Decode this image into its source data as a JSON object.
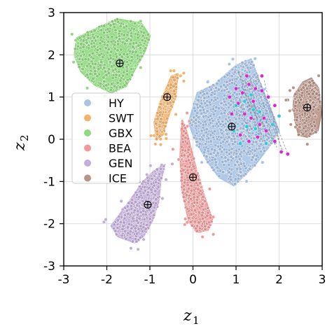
{
  "chart_data": {
    "type": "scatter",
    "xlabel": "z",
    "xlabel_sub": "1",
    "ylabel": "z",
    "ylabel_sub": "2",
    "xlim": [
      -3,
      3
    ],
    "ylim": [
      -3,
      3
    ],
    "xticks": [
      -3,
      -2,
      -1,
      0,
      1,
      2,
      3
    ],
    "yticks": [
      -3,
      -2,
      -1,
      0,
      1,
      2,
      3
    ],
    "grid": true,
    "legend_position": "center-left",
    "series": [
      {
        "name": "HY",
        "color": "#a8c4e6",
        "center": [
          0.9,
          0.3
        ],
        "polygon": [
          [
            -0.1,
            0.4
          ],
          [
            0.1,
            1.1
          ],
          [
            0.5,
            1.3
          ],
          [
            1.0,
            1.75
          ],
          [
            1.35,
            1.9
          ],
          [
            1.65,
            1.1
          ],
          [
            1.85,
            0.6
          ],
          [
            2.0,
            0.2
          ],
          [
            1.75,
            -0.2
          ],
          [
            1.45,
            -0.6
          ],
          [
            1.2,
            -0.85
          ],
          [
            0.95,
            -1.1
          ],
          [
            0.6,
            -0.9
          ],
          [
            0.35,
            -0.55
          ],
          [
            0.15,
            -0.2
          ],
          [
            0.0,
            0.1
          ]
        ]
      },
      {
        "name": "SWT",
        "color": "#f5b26b",
        "center": [
          -0.6,
          1.0
        ],
        "polygon": [
          [
            -0.5,
            1.5
          ],
          [
            -0.35,
            1.55
          ],
          [
            -0.4,
            1.0
          ],
          [
            -0.55,
            0.6
          ],
          [
            -0.7,
            0.1
          ],
          [
            -0.85,
            0.0
          ],
          [
            -0.9,
            0.4
          ],
          [
            -0.75,
            0.9
          ]
        ]
      },
      {
        "name": "GBX",
        "color": "#8fd97e",
        "center": [
          -1.7,
          1.8
        ],
        "polygon": [
          [
            -2.7,
            2.4
          ],
          [
            -2.2,
            2.65
          ],
          [
            -1.75,
            2.85
          ],
          [
            -1.2,
            2.75
          ],
          [
            -1.0,
            2.45
          ],
          [
            -1.1,
            2.1
          ],
          [
            -1.35,
            1.65
          ],
          [
            -1.55,
            1.25
          ],
          [
            -1.9,
            1.1
          ],
          [
            -2.3,
            1.3
          ],
          [
            -2.6,
            1.6
          ],
          [
            -2.75,
            2.0
          ]
        ]
      },
      {
        "name": "BEA",
        "color": "#f29a9a",
        "center": [
          0.0,
          -0.9
        ],
        "polygon": [
          [
            -0.25,
            0.45
          ],
          [
            -0.15,
            0.2
          ],
          [
            0.05,
            -0.6
          ],
          [
            0.25,
            -1.3
          ],
          [
            0.45,
            -1.9
          ],
          [
            0.35,
            -2.15
          ],
          [
            0.1,
            -2.2
          ],
          [
            -0.1,
            -1.95
          ],
          [
            -0.25,
            -1.2
          ],
          [
            -0.3,
            -0.4
          ]
        ]
      },
      {
        "name": "GEN",
        "color": "#c4addb",
        "center": [
          -1.05,
          -1.55
        ],
        "polygon": [
          [
            -0.65,
            -0.6
          ],
          [
            -0.75,
            -1.0
          ],
          [
            -0.8,
            -1.5
          ],
          [
            -0.95,
            -1.95
          ],
          [
            -1.15,
            -2.3
          ],
          [
            -1.35,
            -2.45
          ],
          [
            -1.75,
            -2.3
          ],
          [
            -1.9,
            -2.05
          ],
          [
            -1.5,
            -1.5
          ],
          [
            -1.15,
            -1.0
          ],
          [
            -0.9,
            -0.75
          ]
        ]
      },
      {
        "name": "ICE",
        "color": "#b99388",
        "center": [
          2.65,
          0.75
        ],
        "polygon": [
          [
            2.35,
            1.05
          ],
          [
            2.55,
            1.35
          ],
          [
            2.75,
            1.45
          ],
          [
            2.92,
            1.2
          ],
          [
            2.98,
            0.6
          ],
          [
            2.9,
            0.2
          ],
          [
            2.65,
            0.05
          ],
          [
            2.45,
            0.1
          ],
          [
            2.38,
            0.4
          ],
          [
            2.33,
            0.8
          ]
        ]
      }
    ],
    "overlay_points": [
      {
        "color": "#d62ad0",
        "points": [
          [
            1.0,
            1.2
          ],
          [
            1.15,
            1.1
          ],
          [
            1.3,
            1.3
          ],
          [
            1.45,
            1.2
          ],
          [
            1.6,
            1.15
          ],
          [
            1.75,
            1.0
          ],
          [
            1.9,
            0.8
          ],
          [
            1.2,
            0.6
          ],
          [
            1.35,
            0.5
          ],
          [
            1.55,
            0.35
          ],
          [
            1.7,
            0.2
          ],
          [
            1.1,
            0.1
          ],
          [
            1.3,
            -0.05
          ],
          [
            1.5,
            0.05
          ],
          [
            1.9,
            -0.05
          ],
          [
            2.05,
            -0.3
          ],
          [
            2.2,
            -0.35
          ],
          [
            0.9,
            0.6
          ],
          [
            0.85,
            1.0
          ],
          [
            1.05,
            0.85
          ],
          [
            1.65,
            0.5
          ],
          [
            1.4,
            0.9
          ],
          [
            1.25,
            1.5
          ],
          [
            1.6,
            1.5
          ]
        ]
      },
      {
        "color": "#31c9d8",
        "points": [
          [
            1.0,
            0.8
          ],
          [
            1.2,
            0.9
          ],
          [
            1.4,
            0.7
          ],
          [
            1.55,
            0.65
          ],
          [
            1.25,
            0.3
          ],
          [
            1.45,
            0.25
          ],
          [
            1.1,
            -0.1
          ],
          [
            1.85,
            0.35
          ],
          [
            2.0,
            0.55
          ],
          [
            1.35,
            1.05
          ],
          [
            0.95,
            0.2
          ],
          [
            1.7,
            -0.1
          ]
        ]
      }
    ],
    "connector_lines": [
      [
        [
          1.05,
          1.6
        ],
        [
          1.45,
          0.3
        ]
      ],
      [
        [
          1.1,
          1.5
        ],
        [
          1.6,
          0.2
        ]
      ],
      [
        [
          1.2,
          1.4
        ],
        [
          1.75,
          0.0
        ]
      ],
      [
        [
          1.3,
          1.5
        ],
        [
          1.9,
          -0.1
        ]
      ],
      [
        [
          1.0,
          1.3
        ],
        [
          1.5,
          0.5
        ]
      ],
      [
        [
          1.15,
          1.2
        ],
        [
          1.95,
          -0.2
        ]
      ],
      [
        [
          1.4,
          1.4
        ],
        [
          2.1,
          -0.3
        ]
      ],
      [
        [
          1.5,
          1.5
        ],
        [
          2.2,
          -0.35
        ]
      ],
      [
        [
          1.0,
          1.0
        ],
        [
          1.6,
          0.6
        ]
      ],
      [
        [
          1.2,
          1.1
        ],
        [
          1.8,
          0.3
        ]
      ],
      [
        [
          1.6,
          1.2
        ],
        [
          2.0,
          0.0
        ]
      ],
      [
        [
          1.1,
          0.9
        ],
        [
          1.3,
          0.1
        ]
      ],
      [
        [
          1.25,
          0.8
        ],
        [
          1.7,
          -0.1
        ]
      ],
      [
        [
          1.35,
          1.3
        ],
        [
          1.55,
          0.05
        ]
      ],
      [
        [
          1.65,
          1.4
        ],
        [
          2.05,
          -0.25
        ]
      ],
      [
        [
          0.95,
          0.7
        ],
        [
          1.4,
          0.2
        ]
      ]
    ],
    "center_marker": "circle-plus"
  }
}
